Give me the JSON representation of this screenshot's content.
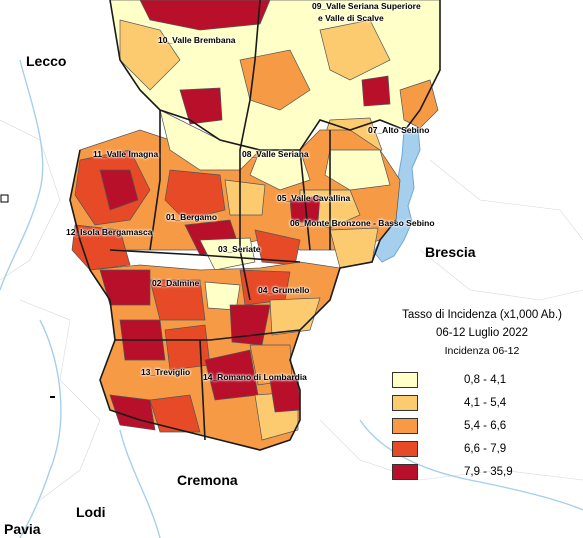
{
  "legend": {
    "title": "Tasso di Incidenza (x1,000 Ab.)",
    "period": "06-12 Luglio 2022",
    "subtitle": "Incidenza 06-12",
    "classes": [
      {
        "range": "0,8 - 4,1",
        "color": "#ffffc8"
      },
      {
        "range": "4,1 - 5,4",
        "color": "#fdcb6f"
      },
      {
        "range": "5,4 - 6,6",
        "color": "#f79a45"
      },
      {
        "range": "6,6 - 7,9",
        "color": "#e64a26"
      },
      {
        "range": "7,9 - 35,9",
        "color": "#b8102a"
      }
    ]
  },
  "districts": {
    "d01": "01_Bergamo",
    "d02": "02_Dalmine",
    "d03": "03_Seriate",
    "d04": "04_Grumello",
    "d05": "05_Valle Cavallina",
    "d06": "06_Monte Bronzone - Basso Sebino",
    "d07": "07_Alto Sebino",
    "d08": "08_Valle Seriana",
    "d09a": "09_Valle Seriana Superiore",
    "d09b": "e Valle di Scalve",
    "d10": "10_Valle Brembana",
    "d11": "11_Valle Imagna",
    "d12": "12_Isola Bergamasca",
    "d13": "13_Treviglio",
    "d14": "14_Romano di Lombardia"
  },
  "provinces": {
    "lecco": "Lecco",
    "brescia": "Brescia",
    "cremona": "Cremona",
    "lodi": "Lodi",
    "pavia": "Pavia"
  },
  "colors": {
    "water": "#a6cfee",
    "outside": "#ffffff",
    "boundary": "#1a1a1a"
  }
}
